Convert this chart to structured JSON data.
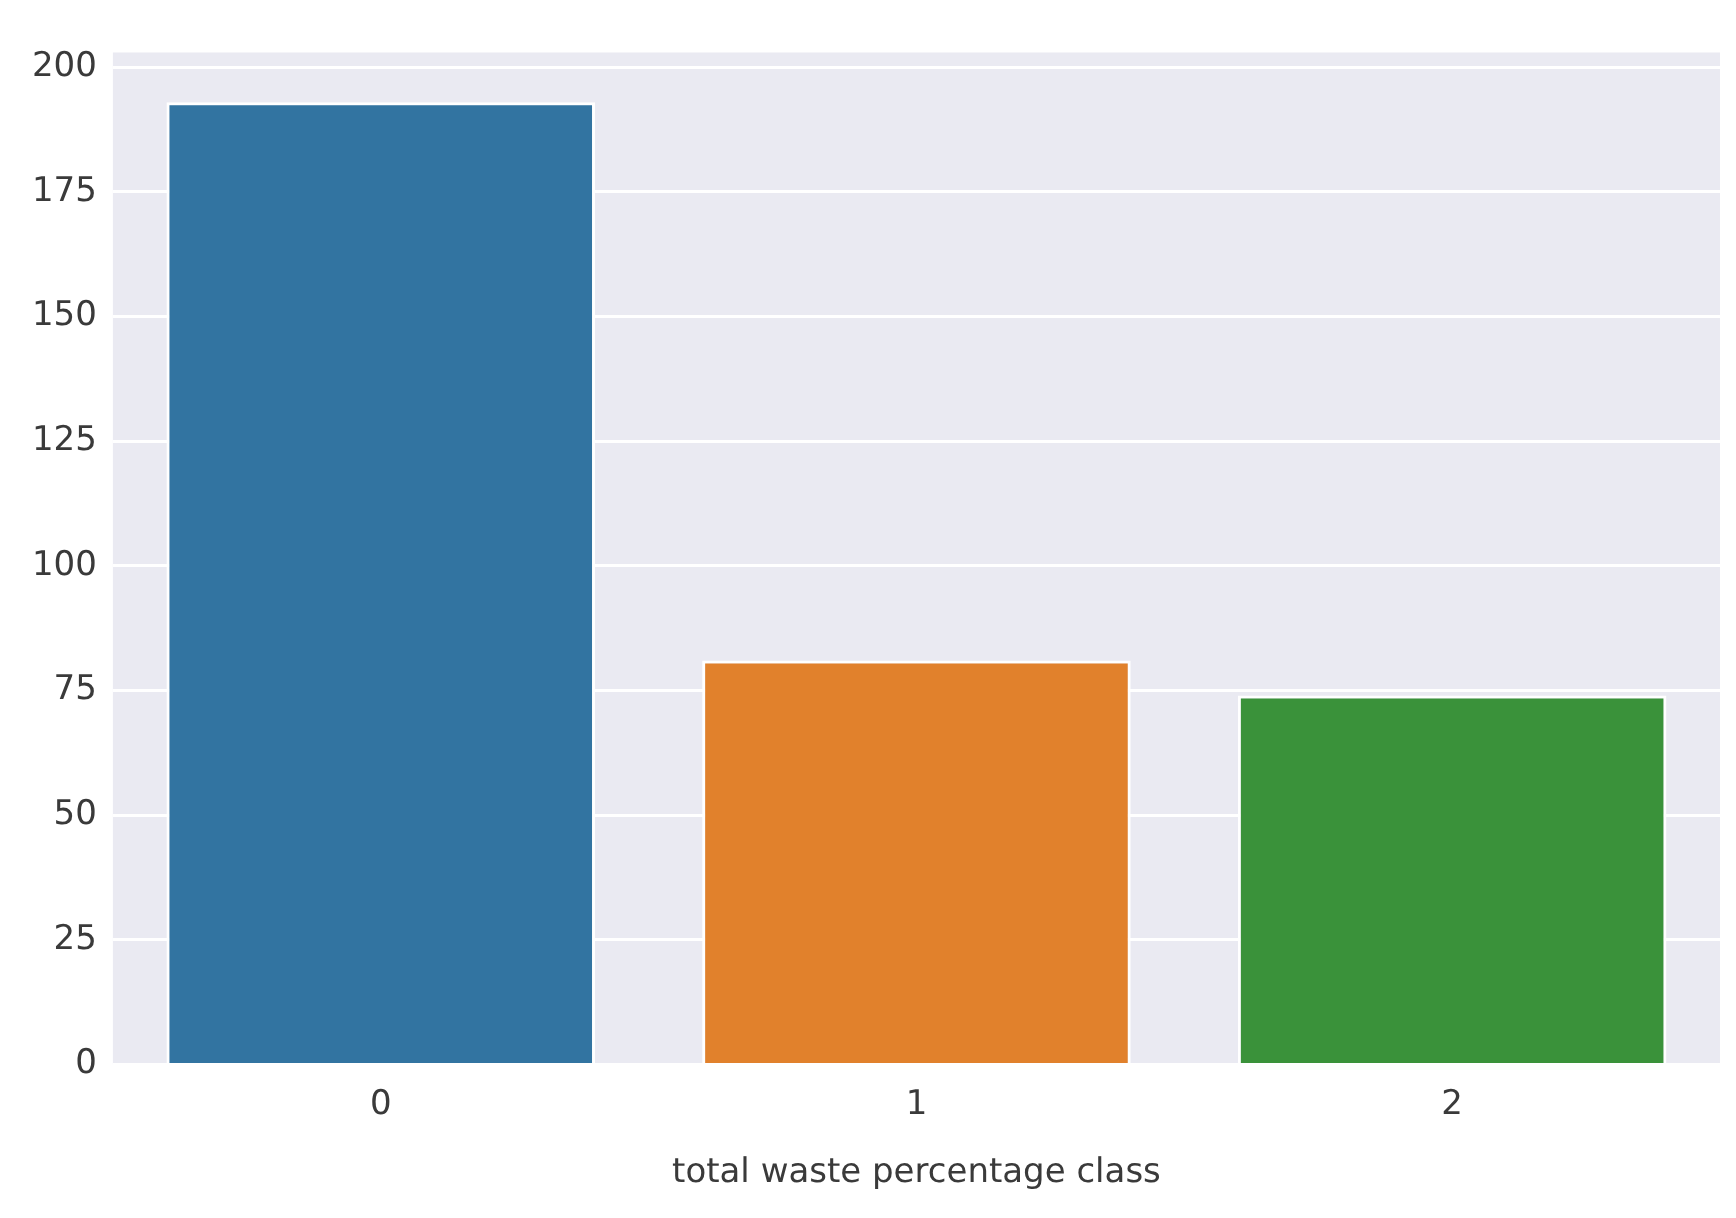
{
  "chart_data": {
    "type": "bar",
    "xlabel": "total waste percentage class",
    "categories": [
      "0",
      "1",
      "2"
    ],
    "values": [
      193,
      81,
      74
    ],
    "colors": [
      "#3274a1",
      "#e1812c",
      "#3a923a"
    ],
    "ylim": [
      0,
      203
    ],
    "yticks": [
      0,
      25,
      50,
      75,
      100,
      125,
      150,
      175,
      200
    ],
    "grid": "y"
  }
}
